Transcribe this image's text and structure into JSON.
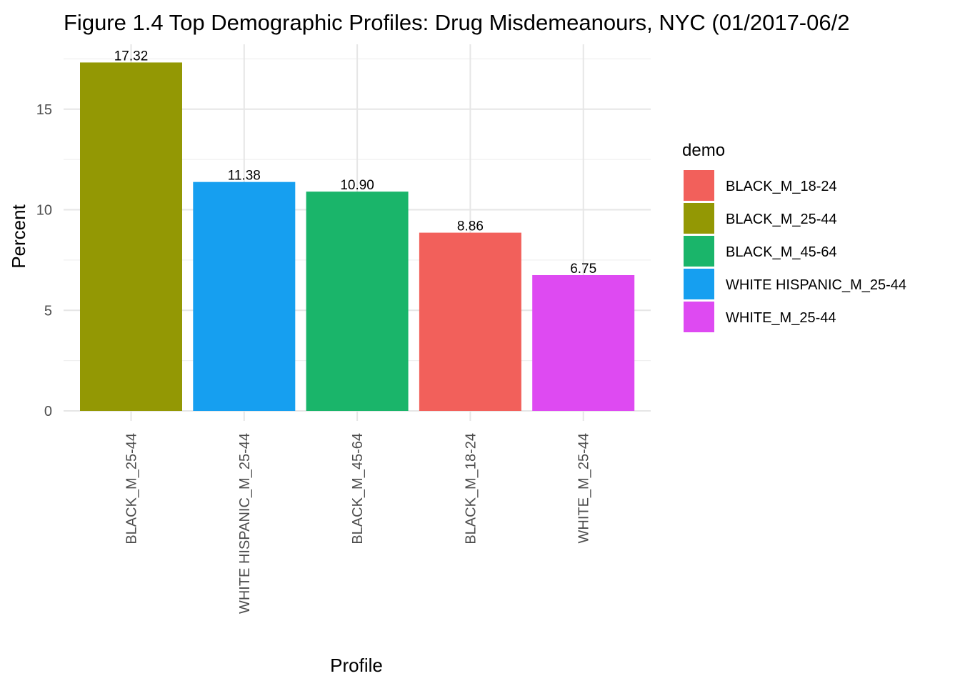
{
  "chart_data": {
    "type": "bar",
    "title": "Figure 1.4 Top Demographic Profiles: Drug Misdemeanours, NYC (01/2017-06/2",
    "xlabel": "Profile",
    "ylabel": "Percent",
    "ylim": [
      0,
      18
    ],
    "yticks": [
      0,
      5,
      10,
      15
    ],
    "grid": true,
    "legend_position": "right",
    "legend_title": "demo",
    "categories": [
      "BLACK_M_25-44",
      "WHITE HISPANIC_M_25-44",
      "BLACK_M_45-64",
      "BLACK_M_18-24",
      "WHITE_M_25-44"
    ],
    "values": [
      17.32,
      11.38,
      10.9,
      8.86,
      6.75
    ],
    "data_labels": [
      "17.32",
      "11.38",
      "10.90",
      "8.86",
      "6.75"
    ],
    "bar_groups": [
      "BLACK_M_25-44",
      "WHITE HISPANIC_M_25-44",
      "BLACK_M_45-64",
      "BLACK_M_18-24",
      "WHITE_M_25-44"
    ],
    "legend": [
      {
        "label": "BLACK_M_18-24",
        "color": "#F8766D"
      },
      {
        "label": "BLACK_M_25-44",
        "color": "#A3A500"
      },
      {
        "label": "BLACK_M_45-64",
        "color": "#00BF7D"
      },
      {
        "label": "WHITE HISPANIC_M_25-44",
        "color": "#00B0F6"
      },
      {
        "label": "WHITE_M_25-44",
        "color": "#E76BF3"
      }
    ],
    "colors": {
      "BLACK_M_18-24": "#F2605B",
      "BLACK_M_25-44": "#939804",
      "BLACK_M_45-64": "#1AB56A",
      "WHITE HISPANIC_M_25-44": "#169FF0",
      "WHITE_M_25-44": "#DE4AF2"
    }
  }
}
